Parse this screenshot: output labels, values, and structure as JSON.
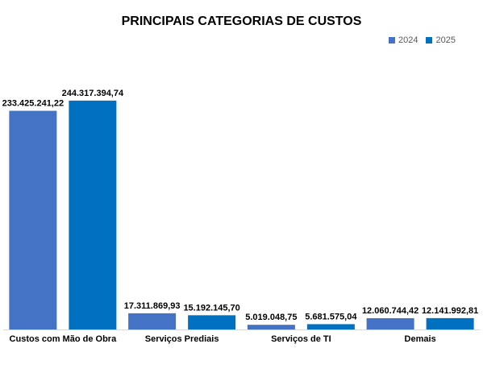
{
  "chart_data": {
    "type": "bar",
    "title": "PRINCIPAIS CATEGORIAS DE CUSTOS",
    "xlabel": "",
    "ylabel": "",
    "categories": [
      "Custos com Mão de Obra",
      "Serviços Prediais",
      "Serviços de TI",
      "Demais"
    ],
    "series": [
      {
        "name": "2024",
        "color": "#4472C4",
        "values": [
          233425241.22,
          17311869.93,
          5019048.75,
          12060744.42
        ],
        "labels": [
          "233.425.241,22",
          "17.311.869,93",
          "5.019.048,75",
          "12.060.744,42"
        ]
      },
      {
        "name": "2025",
        "color": "#0070C0",
        "values": [
          244317394.74,
          15192145.7,
          5681575.04,
          12141992.81
        ],
        "labels": [
          "244.317.394,74",
          "15.192.145,70",
          "5.681.575,04",
          "12.141.992,81"
        ]
      }
    ],
    "ylim": [
      0,
      270000000
    ],
    "grid": false,
    "legend": "top-right",
    "axis_color": "#D9D9D9"
  }
}
